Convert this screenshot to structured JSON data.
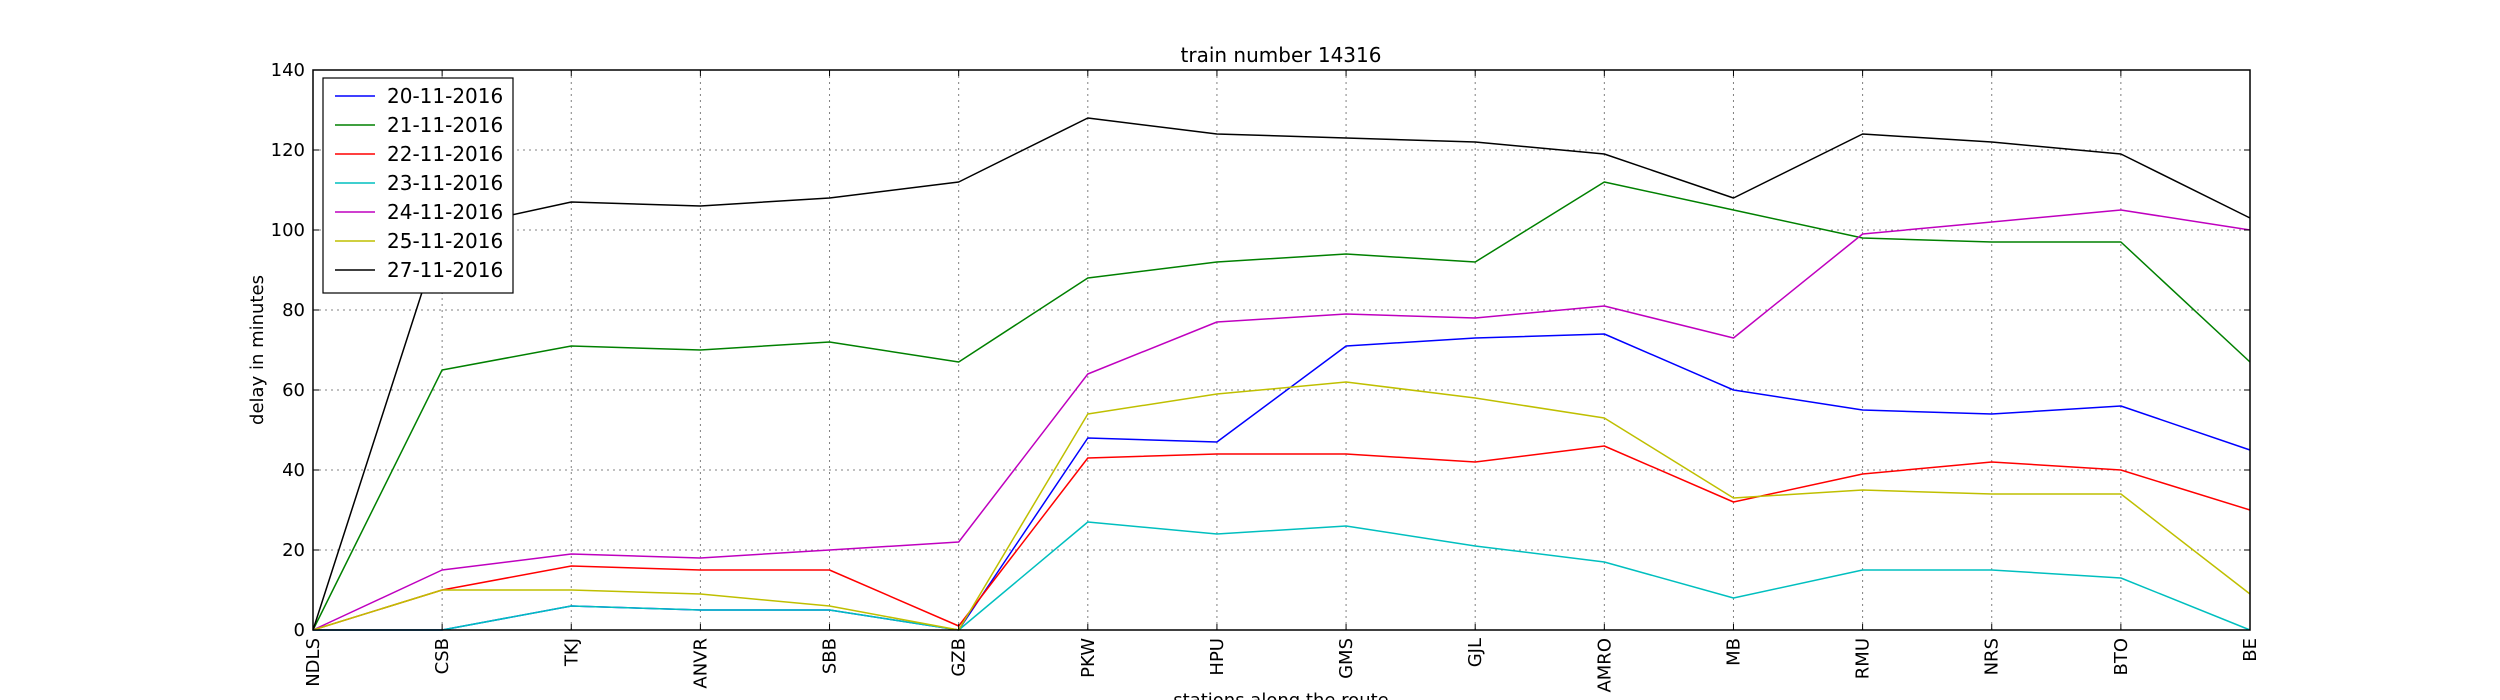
{
  "chart_data": {
    "type": "line",
    "title": "train number 14316",
    "xlabel": "stations along the route",
    "ylabel": "delay in minutes",
    "categories": [
      "NDLS",
      "CSB",
      "TKJ",
      "ANVR",
      "SBB",
      "GZB",
      "PKW",
      "HPU",
      "GMS",
      "GJL",
      "AMRO",
      "MB",
      "RMU",
      "NRS",
      "BTO",
      "BE"
    ],
    "ylim": [
      0,
      140
    ],
    "yticks": [
      0,
      20,
      40,
      60,
      80,
      100,
      120,
      140
    ],
    "grid": true,
    "legend_position": "top-left",
    "series": [
      {
        "name": "20-11-2016",
        "color": "#0000ff",
        "values": [
          0,
          0,
          6,
          5,
          5,
          0,
          48,
          47,
          71,
          73,
          74,
          60,
          55,
          54,
          56,
          45
        ]
      },
      {
        "name": "21-11-2016",
        "color": "#008000",
        "values": [
          0,
          65,
          71,
          70,
          72,
          67,
          88,
          92,
          94,
          92,
          112,
          105,
          98,
          97,
          97,
          67
        ]
      },
      {
        "name": "22-11-2016",
        "color": "#ff0000",
        "values": [
          0,
          10,
          16,
          15,
          15,
          1,
          43,
          44,
          44,
          42,
          46,
          32,
          39,
          42,
          40,
          30
        ]
      },
      {
        "name": "23-11-2016",
        "color": "#00bfbf",
        "values": [
          0,
          0,
          6,
          5,
          5,
          0,
          27,
          24,
          26,
          21,
          17,
          8,
          15,
          15,
          13,
          0
        ]
      },
      {
        "name": "24-11-2016",
        "color": "#bf00bf",
        "values": [
          0,
          15,
          19,
          18,
          20,
          22,
          64,
          77,
          79,
          78,
          81,
          73,
          99,
          102,
          105,
          100
        ]
      },
      {
        "name": "25-11-2016",
        "color": "#bfbf00",
        "values": [
          0,
          10,
          10,
          9,
          6,
          0,
          54,
          59,
          62,
          58,
          53,
          33,
          35,
          34,
          34,
          9
        ]
      },
      {
        "name": "27-11-2016",
        "color": "#000000",
        "values": [
          0,
          100,
          107,
          106,
          108,
          112,
          128,
          124,
          123,
          122,
          119,
          108,
          124,
          122,
          119,
          103
        ]
      }
    ]
  }
}
